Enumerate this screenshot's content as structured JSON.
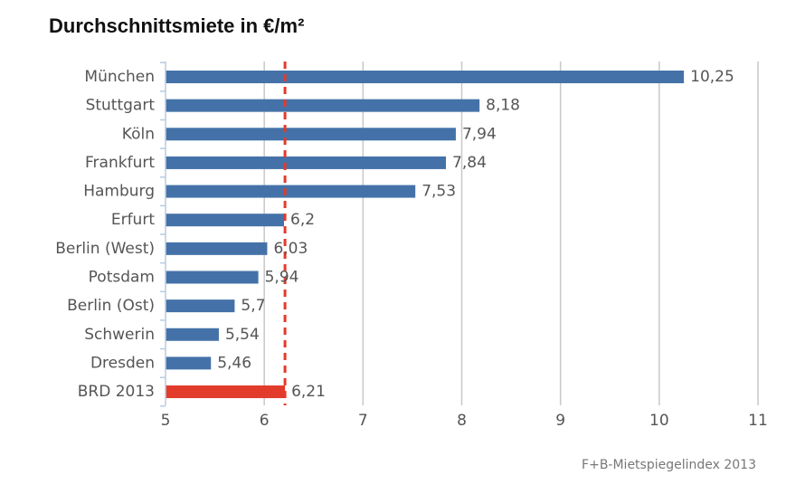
{
  "chart_data": {
    "type": "bar",
    "orientation": "horizontal",
    "title": "Durchschnittsmiete in €/m²",
    "categories": [
      "München",
      "Stuttgart",
      "Köln",
      "Frankfurt",
      "Hamburg",
      "Erfurt",
      "Berlin (West)",
      "Potsdam",
      "Berlin (Ost)",
      "Schwerin",
      "Dresden",
      "BRD 2013"
    ],
    "values": [
      10.25,
      8.18,
      7.94,
      7.84,
      7.53,
      6.2,
      6.03,
      5.94,
      5.7,
      5.54,
      5.46,
      6.21
    ],
    "value_labels": [
      "10,25",
      "8,18",
      "7,94",
      "7,84",
      "7,53",
      "6,2",
      "6,03",
      "5,94",
      "5,7",
      "5,54",
      "5,46",
      "6,21"
    ],
    "xlim": [
      5,
      11
    ],
    "xticks": [
      5,
      6,
      7,
      8,
      9,
      10,
      11
    ],
    "xtick_labels": [
      "5",
      "6",
      "7",
      "8",
      "9",
      "10",
      "11"
    ],
    "reference_line": 6.21,
    "grid": "vertical",
    "bar_color": "#4472a8",
    "highlight_category": "BRD 2013",
    "highlight_color": "#e23b2c",
    "reference_line_color": "#e23b2c",
    "source": "F+B-Mietspiegelindex 2013"
  }
}
